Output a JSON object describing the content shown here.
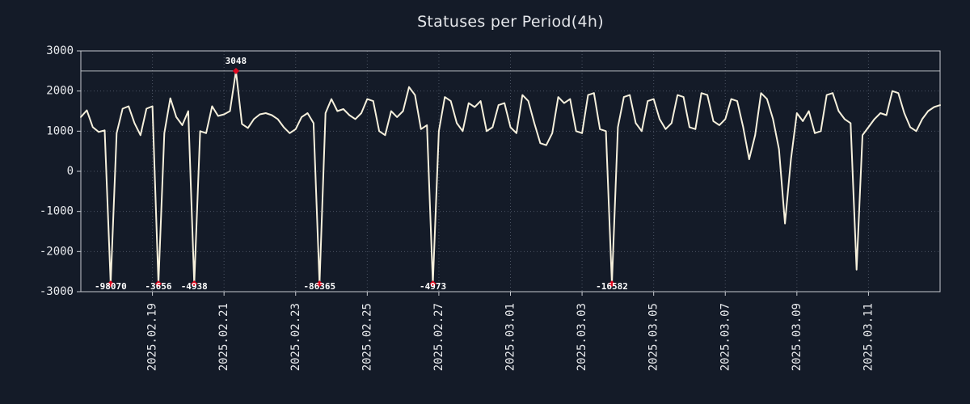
{
  "colors": {
    "background": "#141b28",
    "line": "#f6f0dc",
    "grid": "#4a5261",
    "frame": "#c6c9cf",
    "threshold": "#c6c9cf",
    "marker": "#e0071e",
    "tick_text": "#e8eaed",
    "annotation_text": "#ffffff"
  },
  "chart_data": {
    "type": "line",
    "title": "Statuses per Period(4h)",
    "xlabel": "",
    "ylabel": "",
    "ylim": [
      -3000,
      3000
    ],
    "y_ticks": [
      3000,
      2000,
      1000,
      0,
      -1000,
      -2000,
      -3000
    ],
    "x_ticks": [
      {
        "index": 12,
        "label": "2025.02.19"
      },
      {
        "index": 24,
        "label": "2025.02.21"
      },
      {
        "index": 36,
        "label": "2025.02.23"
      },
      {
        "index": 48,
        "label": "2025.02.25"
      },
      {
        "index": 60,
        "label": "2025.02.27"
      },
      {
        "index": 72,
        "label": "2025.03.01"
      },
      {
        "index": 84,
        "label": "2025.03.03"
      },
      {
        "index": 96,
        "label": "2025.03.05"
      },
      {
        "index": 108,
        "label": "2025.03.07"
      },
      {
        "index": 120,
        "label": "2025.03.09"
      },
      {
        "index": 132,
        "label": "2025.03.11"
      }
    ],
    "threshold": 2500,
    "clip_min": -2800,
    "clip_max": 2500,
    "grid": true,
    "legend_position": "none",
    "values": [
      1350,
      1520,
      1100,
      980,
      1020,
      -98070,
      950,
      1560,
      1620,
      1200,
      900,
      1560,
      1620,
      -3656,
      950,
      1820,
      1350,
      1150,
      1500,
      -4938,
      1000,
      950,
      1620,
      1380,
      1420,
      1500,
      3048,
      1180,
      1080,
      1300,
      1420,
      1450,
      1400,
      1300,
      1100,
      950,
      1050,
      1350,
      1450,
      1200,
      -86365,
      1450,
      1800,
      1500,
      1550,
      1400,
      1300,
      1450,
      1800,
      1750,
      1000,
      900,
      1500,
      1350,
      1500,
      2100,
      1900,
      1050,
      1150,
      -4973,
      1000,
      1850,
      1750,
      1200,
      1000,
      1700,
      1600,
      1750,
      1000,
      1100,
      1650,
      1700,
      1100,
      950,
      1900,
      1750,
      1200,
      700,
      650,
      950,
      1850,
      1700,
      1800,
      1000,
      950,
      1900,
      1950,
      1050,
      1000,
      -16582,
      1100,
      1850,
      1900,
      1200,
      1000,
      1750,
      1800,
      1300,
      1050,
      1200,
      1900,
      1850,
      1100,
      1050,
      1950,
      1900,
      1250,
      1150,
      1300,
      1800,
      1750,
      1100,
      300,
      900,
      1950,
      1800,
      1300,
      550,
      -1300,
      300,
      1450,
      1250,
      1500,
      950,
      1000,
      1900,
      1950,
      1500,
      1300,
      1200,
      -2450,
      900,
      1100,
      1300,
      1450,
      1400,
      2000,
      1950,
      1450,
      1100,
      1000,
      1300,
      1500,
      1600,
      1650
    ],
    "annotations": [
      {
        "index": 5,
        "value": -98070,
        "label": "-98070",
        "position": "bottom"
      },
      {
        "index": 13,
        "value": -3656,
        "label": "-3656",
        "position": "bottom"
      },
      {
        "index": 19,
        "value": -4938,
        "label": "-4938",
        "position": "bottom"
      },
      {
        "index": 26,
        "value": 3048,
        "label": "3048",
        "position": "top"
      },
      {
        "index": 40,
        "value": -86365,
        "label": "-86365",
        "position": "bottom"
      },
      {
        "index": 59,
        "value": -4973,
        "label": "-4973",
        "position": "bottom"
      },
      {
        "index": 89,
        "value": -16582,
        "label": "-16582",
        "position": "bottom"
      }
    ]
  }
}
